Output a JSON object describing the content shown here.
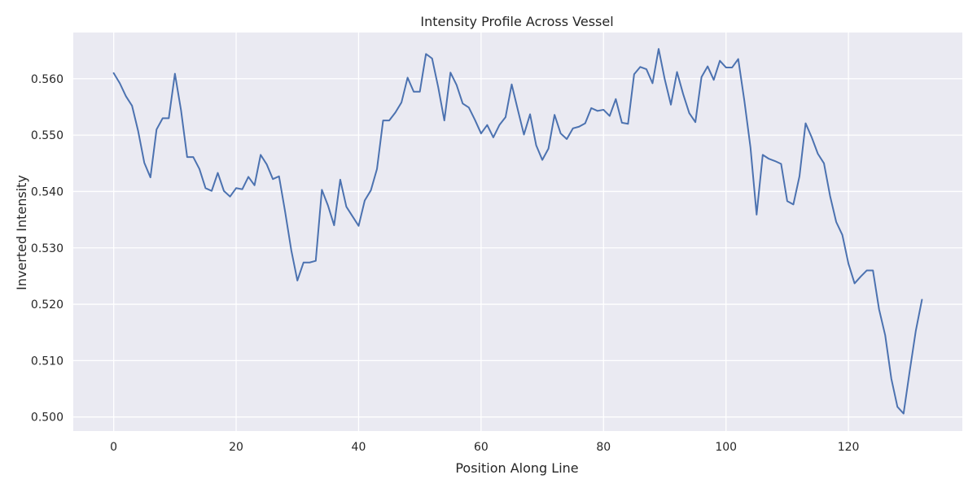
{
  "chart_data": {
    "type": "line",
    "title": "Intensity Profile Across Vessel",
    "xlabel": "Position Along Line",
    "ylabel": "Inverted Intensity",
    "xlim": [
      -6.6,
      138.6
    ],
    "ylim": [
      0.4975,
      0.5682
    ],
    "xticks": [
      0,
      20,
      40,
      60,
      80,
      100,
      120
    ],
    "yticks": [
      0.5,
      0.51,
      0.52,
      0.53,
      0.54,
      0.55,
      0.56
    ],
    "xtick_labels": [
      "0",
      "20",
      "40",
      "60",
      "80",
      "100",
      "120"
    ],
    "ytick_labels": [
      "0.500",
      "0.510",
      "0.520",
      "0.530",
      "0.540",
      "0.550",
      "0.560"
    ],
    "grid": true,
    "legend": false,
    "background": "#eaeaf2",
    "line_color": "#4c72b0",
    "series": [
      {
        "values": [
          0.561,
          0.5592,
          0.5569,
          0.5552,
          0.5507,
          0.5451,
          0.5425,
          0.551,
          0.553,
          0.553,
          0.5609,
          0.5544,
          0.5461,
          0.5461,
          0.544,
          0.5406,
          0.5401,
          0.5433,
          0.5401,
          0.5391,
          0.5406,
          0.5404,
          0.5426,
          0.5411,
          0.5465,
          0.5448,
          0.5422,
          0.5427,
          0.5364,
          0.5296,
          0.5242,
          0.5274,
          0.5274,
          0.5277,
          0.5403,
          0.5375,
          0.534,
          0.5421,
          0.5373,
          0.5356,
          0.5339,
          0.5384,
          0.5402,
          0.544,
          0.5526,
          0.5526,
          0.554,
          0.5558,
          0.5602,
          0.5577,
          0.5577,
          0.5644,
          0.5636,
          0.5585,
          0.5526,
          0.5611,
          0.5589,
          0.5556,
          0.5549,
          0.5527,
          0.5503,
          0.5518,
          0.5496,
          0.5518,
          0.5532,
          0.559,
          0.5545,
          0.5501,
          0.5537,
          0.5482,
          0.5456,
          0.5476,
          0.5536,
          0.5503,
          0.5493,
          0.5512,
          0.5515,
          0.5521,
          0.5548,
          0.5543,
          0.5545,
          0.5534,
          0.5564,
          0.5522,
          0.552,
          0.5608,
          0.5621,
          0.5617,
          0.5592,
          0.5653,
          0.5599,
          0.5554,
          0.5612,
          0.5573,
          0.5539,
          0.5523,
          0.5603,
          0.5622,
          0.5598,
          0.5632,
          0.562,
          0.562,
          0.5635,
          0.5561,
          0.5478,
          0.5359,
          0.5465,
          0.5458,
          0.5454,
          0.5449,
          0.5383,
          0.5377,
          0.5427,
          0.5521,
          0.5496,
          0.5467,
          0.545,
          0.5392,
          0.5346,
          0.5323,
          0.5272,
          0.5237,
          0.5249,
          0.526,
          0.526,
          0.5191,
          0.5145,
          0.5068,
          0.5018,
          0.5006,
          0.5081,
          0.5153,
          0.5208
        ]
      }
    ]
  }
}
